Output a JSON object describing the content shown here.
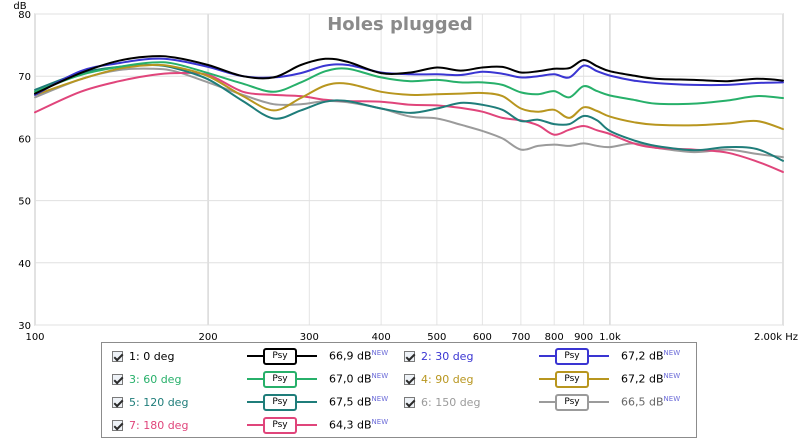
{
  "chart_data": {
    "type": "line",
    "title": "Holes plugged",
    "ylabel": "dB",
    "xlabel": "Hz",
    "xscale": "log",
    "xlim": [
      100,
      2000
    ],
    "ylim": [
      30,
      80
    ],
    "grid": true,
    "x_tick_labels": [
      {
        "value": 100,
        "label": "100"
      },
      {
        "value": 200,
        "label": "200"
      },
      {
        "value": 300,
        "label": "300"
      },
      {
        "value": 400,
        "label": "400"
      },
      {
        "value": 500,
        "label": "500"
      },
      {
        "value": 600,
        "label": "600"
      },
      {
        "value": 700,
        "label": "700"
      },
      {
        "value": 800,
        "label": "800"
      },
      {
        "value": 900,
        "label": "900"
      },
      {
        "value": 1000,
        "label": "1,0k"
      },
      {
        "value": 2000,
        "label": "2,00k Hz"
      }
    ],
    "y_ticks": [
      30,
      40,
      50,
      60,
      70,
      80
    ],
    "x": [
      100,
      120,
      140,
      160,
      175,
      200,
      230,
      260,
      290,
      320,
      350,
      400,
      450,
      500,
      550,
      600,
      650,
      700,
      750,
      800,
      850,
      900,
      950,
      1000,
      1100,
      1200,
      1400,
      1600,
      1800,
      2000
    ],
    "series": [
      {
        "name": "1: 0 deg",
        "color": "#000000",
        "values": [
          67.2,
          70.5,
          72.5,
          73.2,
          73.0,
          71.8,
          70.0,
          69.8,
          71.8,
          72.8,
          72.3,
          70.5,
          70.6,
          71.4,
          70.9,
          71.4,
          71.5,
          70.6,
          70.8,
          71.2,
          71.3,
          72.6,
          71.6,
          70.8,
          70.1,
          69.6,
          69.4,
          69.2,
          69.6,
          69.3
        ]
      },
      {
        "name": "2: 30 deg",
        "color": "#3a35d2",
        "values": [
          67.0,
          70.8,
          72.1,
          72.8,
          72.6,
          71.5,
          70.0,
          69.8,
          70.5,
          71.7,
          71.8,
          70.6,
          70.3,
          70.3,
          70.2,
          70.7,
          70.4,
          69.8,
          70.0,
          70.3,
          69.8,
          71.7,
          70.8,
          70.1,
          69.3,
          68.9,
          68.6,
          68.6,
          68.9,
          69.0
        ]
      },
      {
        "name": "3: 60 deg",
        "color": "#27b06a",
        "values": [
          67.5,
          70.2,
          71.5,
          72.2,
          72.0,
          70.5,
          68.8,
          67.5,
          69.0,
          70.8,
          71.2,
          69.8,
          69.2,
          69.4,
          69.0,
          69.0,
          68.6,
          67.4,
          67.1,
          67.6,
          66.6,
          68.4,
          67.6,
          66.9,
          66.2,
          65.6,
          65.6,
          66.1,
          66.8,
          66.5
        ]
      },
      {
        "name": "4: 90 deg",
        "color": "#b8961f",
        "values": [
          67.0,
          69.5,
          71.2,
          71.8,
          71.5,
          70.0,
          66.8,
          64.5,
          66.5,
          68.5,
          68.8,
          67.5,
          67.0,
          67.1,
          67.2,
          67.3,
          66.8,
          64.8,
          64.3,
          64.6,
          63.3,
          65.0,
          64.4,
          63.5,
          62.6,
          62.2,
          62.1,
          62.4,
          62.8,
          61.5
        ]
      },
      {
        "name": "5: 120 deg",
        "color": "#1f7d7a",
        "values": [
          67.8,
          70.5,
          71.5,
          71.8,
          71.3,
          69.5,
          66.0,
          63.2,
          64.5,
          65.9,
          66.0,
          64.8,
          64.1,
          64.8,
          65.7,
          65.4,
          64.6,
          62.8,
          63.0,
          62.3,
          62.3,
          63.6,
          62.9,
          61.2,
          59.7,
          58.8,
          58.1,
          58.6,
          58.3,
          56.4
        ]
      },
      {
        "name": "6: 150 deg",
        "color": "#9b9b9b",
        "values": [
          66.6,
          69.5,
          71.0,
          71.2,
          70.8,
          69.0,
          67.0,
          65.5,
          65.5,
          66.0,
          65.8,
          64.8,
          63.5,
          63.2,
          62.2,
          61.2,
          60.0,
          58.2,
          58.8,
          59.0,
          58.8,
          59.2,
          58.8,
          58.6,
          59.2,
          58.5,
          57.8,
          58.2,
          57.5,
          57.0
        ]
      },
      {
        "name": "7: 180 deg",
        "color": "#e0457b",
        "values": [
          64.2,
          67.5,
          69.2,
          70.2,
          70.5,
          70.2,
          67.5,
          67.0,
          66.8,
          66.2,
          66.0,
          65.9,
          65.4,
          65.3,
          64.9,
          64.3,
          63.3,
          62.9,
          62.1,
          60.6,
          61.4,
          62.0,
          61.3,
          60.7,
          59.2,
          58.5,
          58.2,
          57.7,
          56.3,
          54.6
        ]
      }
    ]
  },
  "legend": {
    "psy_label": "Psy",
    "new_tag": "NEW",
    "items": [
      {
        "label": "1: 0 deg",
        "color": "#000000",
        "level": "66,9 dB"
      },
      {
        "label": "2: 30 deg",
        "color": "#3a35d2",
        "level": "67,2 dB"
      },
      {
        "label": "3: 60 deg",
        "color": "#27b06a",
        "level": "67,0 dB"
      },
      {
        "label": "4: 90 deg",
        "color": "#b8961f",
        "level": "67,2 dB"
      },
      {
        "label": "5: 120 deg",
        "color": "#1f7d7a",
        "level": "67,5 dB"
      },
      {
        "label": "6: 150 deg",
        "color": "#9b9b9b",
        "level": "66,5 dB"
      },
      {
        "label": "7: 180 deg",
        "color": "#e0457b",
        "level": "64,3 dB"
      }
    ]
  }
}
